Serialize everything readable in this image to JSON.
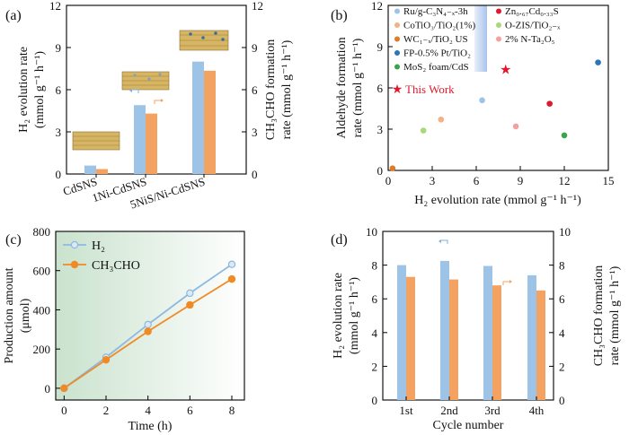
{
  "colors": {
    "blue": "#9dc3e6",
    "orange": "#f4a261",
    "blueLine": "#8fb8e0",
    "orangeLine": "#f08a24",
    "star": "#e0192c"
  },
  "chart_data": [
    {
      "panel": "(a)",
      "type": "bar",
      "categories": [
        "CdSNS",
        "1Ni-CdSNS",
        "5NiS/Ni-CdSNS"
      ],
      "series": [
        {
          "name": "H2 evolution rate",
          "axis": "left",
          "values": [
            0.6,
            4.9,
            8.0
          ]
        },
        {
          "name": "CH3CHO formation rate",
          "axis": "right",
          "values": [
            0.35,
            4.3,
            7.35
          ]
        }
      ],
      "ylabel_left": "H₂ evolution rate",
      "ylabel_left_units": "(mmol g⁻¹ h⁻¹)",
      "ylabel_right": "CH₃CHO formation",
      "ylabel_right_units": "rate (mmol g⁻¹ h⁻¹)",
      "ylim": [
        0,
        12
      ],
      "yticks": [
        "0",
        "3",
        "6",
        "9",
        "12"
      ]
    },
    {
      "panel": "(b)",
      "type": "scatter",
      "xlabel": "H₂ evolution rate (mmol g⁻¹ h⁻¹)",
      "ylabel_line1": "Aldehyde formation",
      "ylabel_line2": "rate (mmol g⁻¹ h⁻¹)",
      "xlim": [
        0,
        15
      ],
      "ylim": [
        0,
        12
      ],
      "xticks": [
        "0",
        "3",
        "6",
        "9",
        "12",
        "15"
      ],
      "yticks": [
        "0",
        "3",
        "6",
        "9",
        "12"
      ],
      "points": [
        {
          "name": "Ru/g-C₃N₄₋ₓ-3h",
          "x": 6.4,
          "y": 5.1,
          "color": "#9dc3e6"
        },
        {
          "name": "CoTiO₃/TiO₂(1%)",
          "x": 3.6,
          "y": 3.7,
          "color": "#f4b183"
        },
        {
          "name": "WC₁₋ₓ/TiO₂ US",
          "x": 0.3,
          "y": 0.15,
          "color": "#e07b27"
        },
        {
          "name": "FP-0.5% Pt/TiO₂",
          "x": 14.3,
          "y": 7.85,
          "color": "#2e75b6"
        },
        {
          "name": "MoS₂ foam/CdS",
          "x": 12.0,
          "y": 2.55,
          "color": "#38a548"
        },
        {
          "name": "Zn₀.₆₇Cd₀.₃₃S",
          "x": 11.0,
          "y": 4.85,
          "color": "#e0192c"
        },
        {
          "name": "O-ZIS/TiO₂₋ₓ",
          "x": 2.4,
          "y": 2.9,
          "color": "#a8d878"
        },
        {
          "name": "2% N-Ta₂O₅",
          "x": 8.7,
          "y": 3.2,
          "color": "#f4a0a0"
        }
      ],
      "this_work": {
        "name": "This Work",
        "x": 8.0,
        "y": 7.35
      }
    },
    {
      "panel": "(c)",
      "type": "line",
      "xlabel": "Time (h)",
      "ylabel_line1": "Production amount",
      "ylabel_line2": "(μmol)",
      "x": [
        0,
        2,
        4,
        6,
        8
      ],
      "xlim": [
        -0.4,
        8.6
      ],
      "ylim": [
        -60,
        800
      ],
      "xticks": [
        "0",
        "2",
        "4",
        "6",
        "8"
      ],
      "yticks": [
        "0",
        "200",
        "400",
        "600",
        "800"
      ],
      "series": [
        {
          "name": "H₂",
          "values": [
            0,
            158,
            325,
            485,
            632
          ]
        },
        {
          "name": "CH₃CHO",
          "values": [
            0,
            145,
            290,
            425,
            557
          ]
        }
      ]
    },
    {
      "panel": "(d)",
      "type": "bar",
      "xlabel": "Cycle number",
      "categories": [
        "1st",
        "2nd",
        "3rd",
        "4th"
      ],
      "series": [
        {
          "name": "H2 evolution rate",
          "axis": "left",
          "values": [
            8.0,
            8.25,
            7.95,
            7.4
          ]
        },
        {
          "name": "CH3CHO formation rate",
          "axis": "right",
          "values": [
            7.3,
            7.15,
            6.8,
            6.5
          ]
        }
      ],
      "ylabel_left": "H₂ evolution rate",
      "ylabel_left_units": "(mmol g⁻¹ h⁻¹)",
      "ylabel_right": "CH₃CHO formation",
      "ylabel_right_units": "rate (mmol g⁻¹ h⁻¹)",
      "ylim": [
        0,
        10
      ],
      "yticks": [
        "0",
        "2",
        "4",
        "6",
        "8",
        "10"
      ]
    }
  ]
}
